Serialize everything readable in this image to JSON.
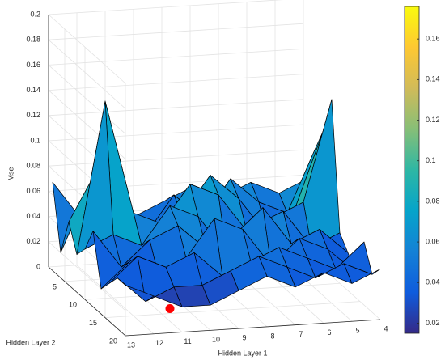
{
  "chart_data": {
    "type": "surface",
    "xlabel": "Hidden Layer 1",
    "ylabel": "Hidden Layer 2",
    "zlabel": "Mse",
    "x": [
      4,
      5,
      6,
      7,
      8,
      9,
      10,
      11,
      12,
      13
    ],
    "y": [
      2,
      4,
      6,
      8,
      10,
      12,
      14,
      16,
      18,
      20
    ],
    "z": [
      [
        0.06,
        0.05,
        0.06,
        0.05,
        0.06,
        0.05,
        0.04,
        0.05,
        0.04,
        0.07
      ],
      [
        0.09,
        0.04,
        0.05,
        0.07,
        0.04,
        0.06,
        0.03,
        0.06,
        0.07,
        0.02
      ],
      [
        0.11,
        0.05,
        0.03,
        0.06,
        0.08,
        0.05,
        0.04,
        0.03,
        0.09,
        0.05
      ],
      [
        0.14,
        0.06,
        0.05,
        0.04,
        0.07,
        0.08,
        0.05,
        0.06,
        0.15,
        0.03
      ],
      [
        0.04,
        0.03,
        0.06,
        0.05,
        0.03,
        0.06,
        0.07,
        0.04,
        0.05,
        0.04
      ],
      [
        0.03,
        0.05,
        0.04,
        0.07,
        0.05,
        0.04,
        0.06,
        0.05,
        0.03,
        0.06
      ],
      [
        0.02,
        0.04,
        0.05,
        0.03,
        0.06,
        0.07,
        0.04,
        0.03,
        0.04,
        0.02
      ],
      [
        0.05,
        0.03,
        0.04,
        0.05,
        0.04,
        0.03,
        0.05,
        0.04,
        0.05,
        0.03
      ],
      [
        0.03,
        0.04,
        0.03,
        0.04,
        0.05,
        0.04,
        0.03,
        0.03,
        0.02,
        0.04
      ],
      [
        0.04,
        0.03,
        0.04,
        0.03,
        0.04,
        0.03,
        0.02,
        0.02,
        0.03,
        0.04
      ]
    ],
    "xlim": [
      4,
      13
    ],
    "ylim": [
      1,
      20
    ],
    "zlim": [
      0,
      0.2
    ],
    "xticks": [
      13,
      12,
      11,
      10,
      9,
      8,
      7,
      6,
      5,
      4
    ],
    "yticks": [
      5,
      10,
      15,
      20
    ],
    "zticks": [
      0,
      0.02,
      0.04,
      0.06,
      0.08,
      0.1,
      0.12,
      0.14,
      0.16,
      0.18,
      0.2
    ],
    "clim": [
      0.015,
      0.176
    ],
    "cticks": [
      0.02,
      0.04,
      0.06,
      0.08,
      0.1,
      0.12,
      0.14,
      0.16
    ],
    "colormap": [
      "#352a87",
      "#0f5cdd",
      "#1481d6",
      "#06a4ca",
      "#2eb7a4",
      "#87bf77",
      "#d1bb59",
      "#fec832",
      "#f9fb0e"
    ],
    "grid": true,
    "marker": {
      "x": 11,
      "y": 17,
      "z": 0.01,
      "color": "#ff0000"
    }
  }
}
